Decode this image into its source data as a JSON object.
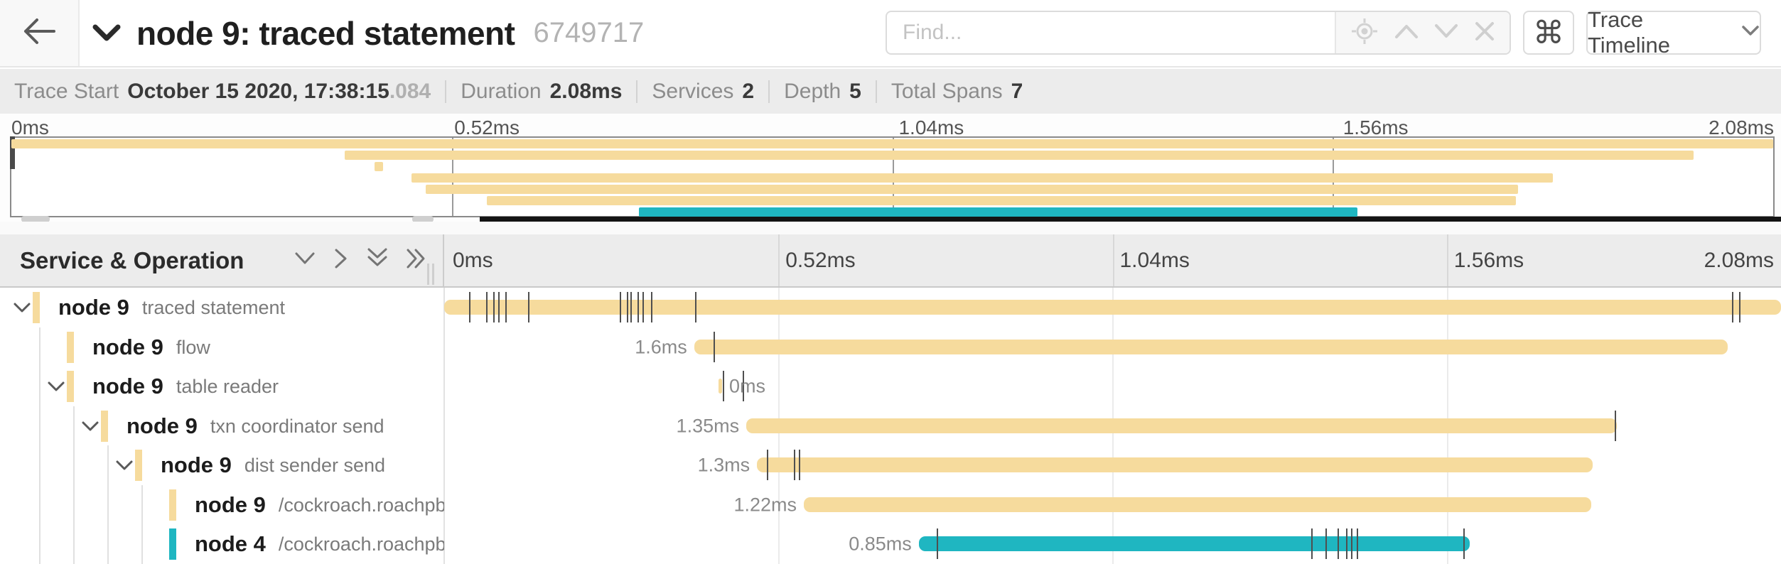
{
  "colors": {
    "tan": "#F6DB9D",
    "teal": "#1FB6C1",
    "tick": "#4f4f4f"
  },
  "header": {
    "back_icon": "arrow-left",
    "collapse_icon": "chevron-down",
    "title": "node 9: traced statement",
    "trace_id": "6749717",
    "find_placeholder": "Find...",
    "find_tools": [
      "locate-icon",
      "chevron-up-icon",
      "chevron-down-icon",
      "close-icon"
    ],
    "keyboard_shortcut_icon": "⌘",
    "view_selector_label": "Trace Timeline"
  },
  "summary": {
    "items": [
      {
        "label": "Trace Start",
        "value": "October 15 2020, 17:38:15",
        "suffix": ".084"
      },
      {
        "label": "Duration",
        "value": "2.08ms"
      },
      {
        "label": "Services",
        "value": "2"
      },
      {
        "label": "Depth",
        "value": "5"
      },
      {
        "label": "Total Spans",
        "value": "7"
      }
    ]
  },
  "minimap": {
    "ticks": [
      "0ms",
      "0.52ms",
      "1.04ms",
      "1.56ms",
      "2.08ms"
    ],
    "bars": [
      {
        "start": 0,
        "end": 100,
        "color": "tan"
      },
      {
        "start": 18.9,
        "end": 95.5,
        "color": "tan"
      },
      {
        "start": 20.6,
        "end": 21.1,
        "color": "tan"
      },
      {
        "start": 22.7,
        "end": 87.5,
        "color": "tan"
      },
      {
        "start": 23.5,
        "end": 85.5,
        "color": "tan"
      },
      {
        "start": 27.0,
        "end": 85.4,
        "color": "tan"
      },
      {
        "start": 35.6,
        "end": 76.4,
        "color": "teal"
      }
    ]
  },
  "timeline": {
    "header_label": "Service & Operation",
    "header_icons": [
      "collapse-one-icon",
      "expand-one-icon",
      "collapse-all-icon",
      "expand-all-icon"
    ],
    "ticks": [
      "0ms",
      "0.52ms",
      "1.04ms",
      "1.56ms",
      "2.08ms"
    ],
    "rows": [
      {
        "service": "node 9",
        "operation": "traced statement",
        "depth": 0,
        "expander": true,
        "color": "tan",
        "bar": {
          "start": 0,
          "end": 100
        },
        "label": "",
        "label_side": "none",
        "label_anchor": 0,
        "ticks": [
          1.9,
          3.2,
          3.7,
          4.1,
          4.6,
          6.3,
          13.2,
          13.7,
          14.0,
          14.5,
          14.9,
          15.5,
          18.8,
          96.4,
          96.9
        ]
      },
      {
        "service": "node 9",
        "operation": "flow",
        "depth": 1,
        "expander": false,
        "color": "tan",
        "bar": {
          "start": 18.7,
          "end": 96.0
        },
        "label": "1.6ms",
        "label_side": "left",
        "label_anchor": 18.7,
        "ticks": [
          20.2
        ]
      },
      {
        "service": "node 9",
        "operation": "table reader",
        "depth": 1,
        "expander": true,
        "color": "tan",
        "bar": {
          "start": 20.5,
          "end": 20.8
        },
        "label": "0ms",
        "label_side": "right",
        "label_anchor": 21.0,
        "ticks": [
          20.9,
          22.4
        ]
      },
      {
        "service": "node 9",
        "operation": "txn coordinator send",
        "depth": 2,
        "expander": true,
        "color": "tan",
        "bar": {
          "start": 22.6,
          "end": 87.7
        },
        "label": "1.35ms",
        "label_side": "left",
        "label_anchor": 22.6,
        "ticks": [
          87.6
        ]
      },
      {
        "service": "node 9",
        "operation": "dist sender send",
        "depth": 3,
        "expander": true,
        "color": "tan",
        "bar": {
          "start": 23.4,
          "end": 85.9
        },
        "label": "1.3ms",
        "label_side": "left",
        "label_anchor": 23.4,
        "ticks": [
          24.2,
          26.2,
          26.6
        ]
      },
      {
        "service": "node 9",
        "operation": "/cockroach.roachpb.I…",
        "depth": 4,
        "expander": false,
        "color": "tan",
        "bar": {
          "start": 26.9,
          "end": 85.8
        },
        "label": "1.22ms",
        "label_side": "left",
        "label_anchor": 26.9,
        "ticks": []
      },
      {
        "service": "node 4",
        "operation": "/cockroach.roachpb.I…",
        "depth": 4,
        "expander": false,
        "color": "teal",
        "bar": {
          "start": 35.5,
          "end": 76.7
        },
        "label": "0.85ms",
        "label_side": "left",
        "label_anchor": 35.5,
        "ticks": [
          36.9,
          64.9,
          66.0,
          66.9,
          67.5,
          67.9,
          68.3,
          76.3
        ]
      }
    ]
  }
}
